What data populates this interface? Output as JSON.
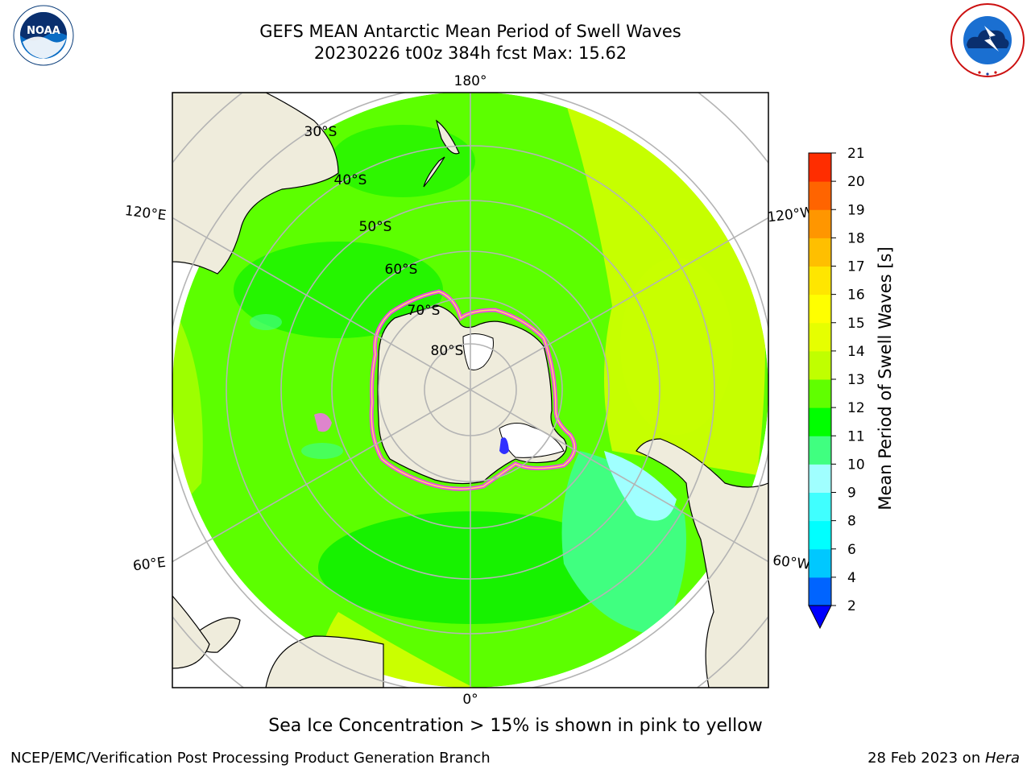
{
  "title_line1": "GEFS MEAN Antarctic Mean Period of Swell Waves",
  "title_line2": "20230226 t00z 384h fcst   Max: 15.62",
  "note": "Sea Ice Concentration > 15% is shown in pink to yellow",
  "footer_left": "NCEP/EMC/Verification Post Processing Product Generation Branch",
  "footer_date": "28 Feb 2023 on ",
  "footer_machine": "Hera",
  "logos": {
    "left": "noaa-logo",
    "right": "nws-logo"
  },
  "map": {
    "projection": "south polar stereographic",
    "longitude_labels": {
      "top": "180°",
      "bottom": "0°",
      "left_upper": "120°E",
      "left_lower": "60°E",
      "right_upper": "120°W",
      "right_lower": "60°W"
    },
    "latitude_labels": [
      "30°S",
      "40°S",
      "50°S",
      "60°S",
      "70°S",
      "80°S"
    ],
    "colors": {
      "land": "#efecdc",
      "ice_edge": "#ff33ff",
      "grid": "#b4b4b4"
    }
  },
  "colorbar": {
    "label": "Mean Period of Swell Waves [s]",
    "ticks": [
      "2",
      "4",
      "6",
      "8",
      "9",
      "10",
      "11",
      "12",
      "13",
      "14",
      "15",
      "16",
      "17",
      "18",
      "19",
      "20",
      "21"
    ],
    "colors": [
      "#0064ff",
      "#00c8ff",
      "#00ffff",
      "#40ffff",
      "#a0ffff",
      "#40ff80",
      "#00ff00",
      "#60ff00",
      "#c0ff00",
      "#e6ff00",
      "#ffff00",
      "#ffe600",
      "#ffbf00",
      "#ff9600",
      "#ff6400",
      "#ff2d00"
    ],
    "extend_color": "#0000ff"
  }
}
